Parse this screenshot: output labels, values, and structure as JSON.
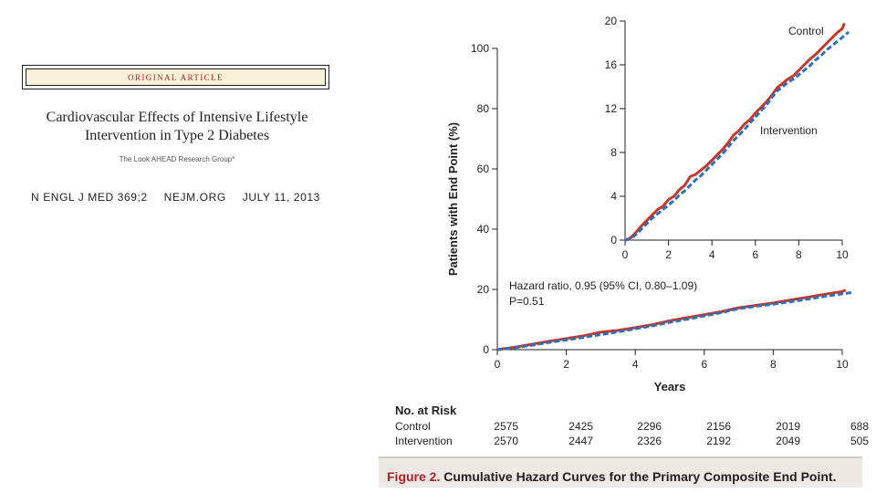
{
  "article": {
    "banner": "ORIGINAL ARTICLE",
    "title_line1": "Cardiovascular Effects of Intensive Lifestyle",
    "title_line2": "Intervention in Type 2 Diabetes",
    "authors": "The Look AHEAD Research Group*",
    "citation": [
      "N ENGL J MED 369;2",
      "NEJM.ORG",
      "JULY 11, 2013"
    ]
  },
  "chart_data": [
    {
      "type": "line",
      "name": "main",
      "title": "",
      "xlabel": "Years",
      "ylabel": "Patients with End Point (%)",
      "xlim": [
        0,
        10
      ],
      "ylim": [
        0,
        100
      ],
      "xticks": [
        0,
        2,
        4,
        6,
        8,
        10
      ],
      "yticks": [
        0,
        20,
        40,
        60,
        80,
        100
      ],
      "annotations": [
        "Hazard ratio, 0.95 (95% CI, 0.80–1.09)",
        "P=0.51"
      ],
      "series": [
        {
          "name": "Control",
          "color": "#c0392b",
          "style": "solid",
          "x": [
            0,
            0.5,
            1,
            1.5,
            2,
            2.5,
            3,
            3.5,
            4,
            4.5,
            5,
            5.5,
            6,
            6.5,
            7,
            7.5,
            8,
            8.5,
            9,
            9.5,
            10,
            10.1
          ],
          "y": [
            0,
            0.8,
            1.8,
            2.8,
            3.7,
            4.6,
            5.8,
            6.4,
            7.3,
            8.3,
            9.6,
            10.6,
            11.6,
            12.6,
            13.9,
            14.7,
            15.5,
            16.5,
            17.4,
            18.4,
            19.3,
            19.8
          ]
        },
        {
          "name": "Intervention",
          "color": "#2e6fba",
          "style": "dashed",
          "x": [
            0,
            0.5,
            1,
            1.5,
            2,
            2.5,
            3,
            3.5,
            4,
            4.5,
            5,
            5.5,
            6,
            6.5,
            7,
            7.5,
            8,
            8.5,
            9,
            9.5,
            10,
            10.3
          ],
          "y": [
            0,
            0.6,
            1.5,
            2.4,
            3.2,
            4.1,
            5.0,
            5.9,
            6.9,
            7.9,
            9.1,
            10.1,
            11.2,
            12.3,
            13.6,
            14.4,
            15.1,
            15.9,
            16.8,
            17.7,
            18.5,
            19.0
          ]
        }
      ]
    },
    {
      "type": "line",
      "name": "inset",
      "xlim": [
        0,
        10
      ],
      "ylim": [
        0,
        20
      ],
      "xticks": [
        0,
        2,
        4,
        6,
        8,
        10
      ],
      "yticks": [
        0,
        4,
        8,
        12,
        16,
        20
      ],
      "series": [
        {
          "name": "Control",
          "color": "#c0392b",
          "style": "solid",
          "x": [
            0,
            0.25,
            0.5,
            0.75,
            1,
            1.25,
            1.5,
            1.75,
            2,
            2.25,
            2.5,
            2.75,
            3,
            3.25,
            3.5,
            3.75,
            4,
            4.25,
            4.5,
            4.75,
            5,
            5.25,
            5.5,
            5.75,
            6,
            6.25,
            6.5,
            6.75,
            7,
            7.25,
            7.5,
            7.75,
            8,
            8.25,
            8.5,
            8.75,
            9,
            9.25,
            9.5,
            9.75,
            10,
            10.1
          ],
          "y": [
            0,
            0.2,
            0.7,
            1.3,
            1.8,
            2.3,
            2.8,
            3.1,
            3.7,
            4.0,
            4.6,
            5.0,
            5.8,
            6.0,
            6.4,
            6.8,
            7.3,
            7.8,
            8.3,
            8.9,
            9.6,
            10.0,
            10.6,
            11.0,
            11.6,
            12.1,
            12.6,
            13.2,
            13.9,
            14.3,
            14.7,
            15.0,
            15.5,
            16.0,
            16.5,
            16.9,
            17.4,
            17.9,
            18.4,
            18.9,
            19.3,
            19.8
          ]
        },
        {
          "name": "Intervention",
          "color": "#2e6fba",
          "style": "dashed",
          "x": [
            0,
            0.25,
            0.5,
            0.75,
            1,
            1.25,
            1.5,
            1.75,
            2,
            2.25,
            2.5,
            2.75,
            3,
            3.25,
            3.5,
            3.75,
            4,
            4.25,
            4.5,
            4.75,
            5,
            5.25,
            5.5,
            5.75,
            6,
            6.25,
            6.5,
            6.75,
            7,
            7.25,
            7.5,
            7.75,
            8,
            8.25,
            8.5,
            8.75,
            9,
            9.25,
            9.5,
            9.75,
            10,
            10.3
          ],
          "y": [
            0,
            0.1,
            0.5,
            1.0,
            1.5,
            2.0,
            2.4,
            2.8,
            3.2,
            3.6,
            4.1,
            4.5,
            5.0,
            5.5,
            5.9,
            6.4,
            6.9,
            7.4,
            7.9,
            8.5,
            9.1,
            9.6,
            10.1,
            10.7,
            11.2,
            11.8,
            12.3,
            13.0,
            13.6,
            14.0,
            14.4,
            14.7,
            15.1,
            15.5,
            15.9,
            16.4,
            16.8,
            17.3,
            17.7,
            18.1,
            18.5,
            19.0
          ]
        }
      ],
      "labels": [
        "Control",
        "Intervention"
      ]
    }
  ],
  "risk_table": {
    "title": "No. at Risk",
    "rows": [
      {
        "label": "Control",
        "values": [
          "2575",
          "2425",
          "2296",
          "2156",
          "2019",
          "688"
        ]
      },
      {
        "label": "Intervention",
        "values": [
          "2570",
          "2447",
          "2326",
          "2192",
          "2049",
          "505"
        ]
      }
    ]
  },
  "caption": {
    "figure": "Figure 2.",
    "text": "Cumulative Hazard Curves for the Primary Composite End Point."
  }
}
